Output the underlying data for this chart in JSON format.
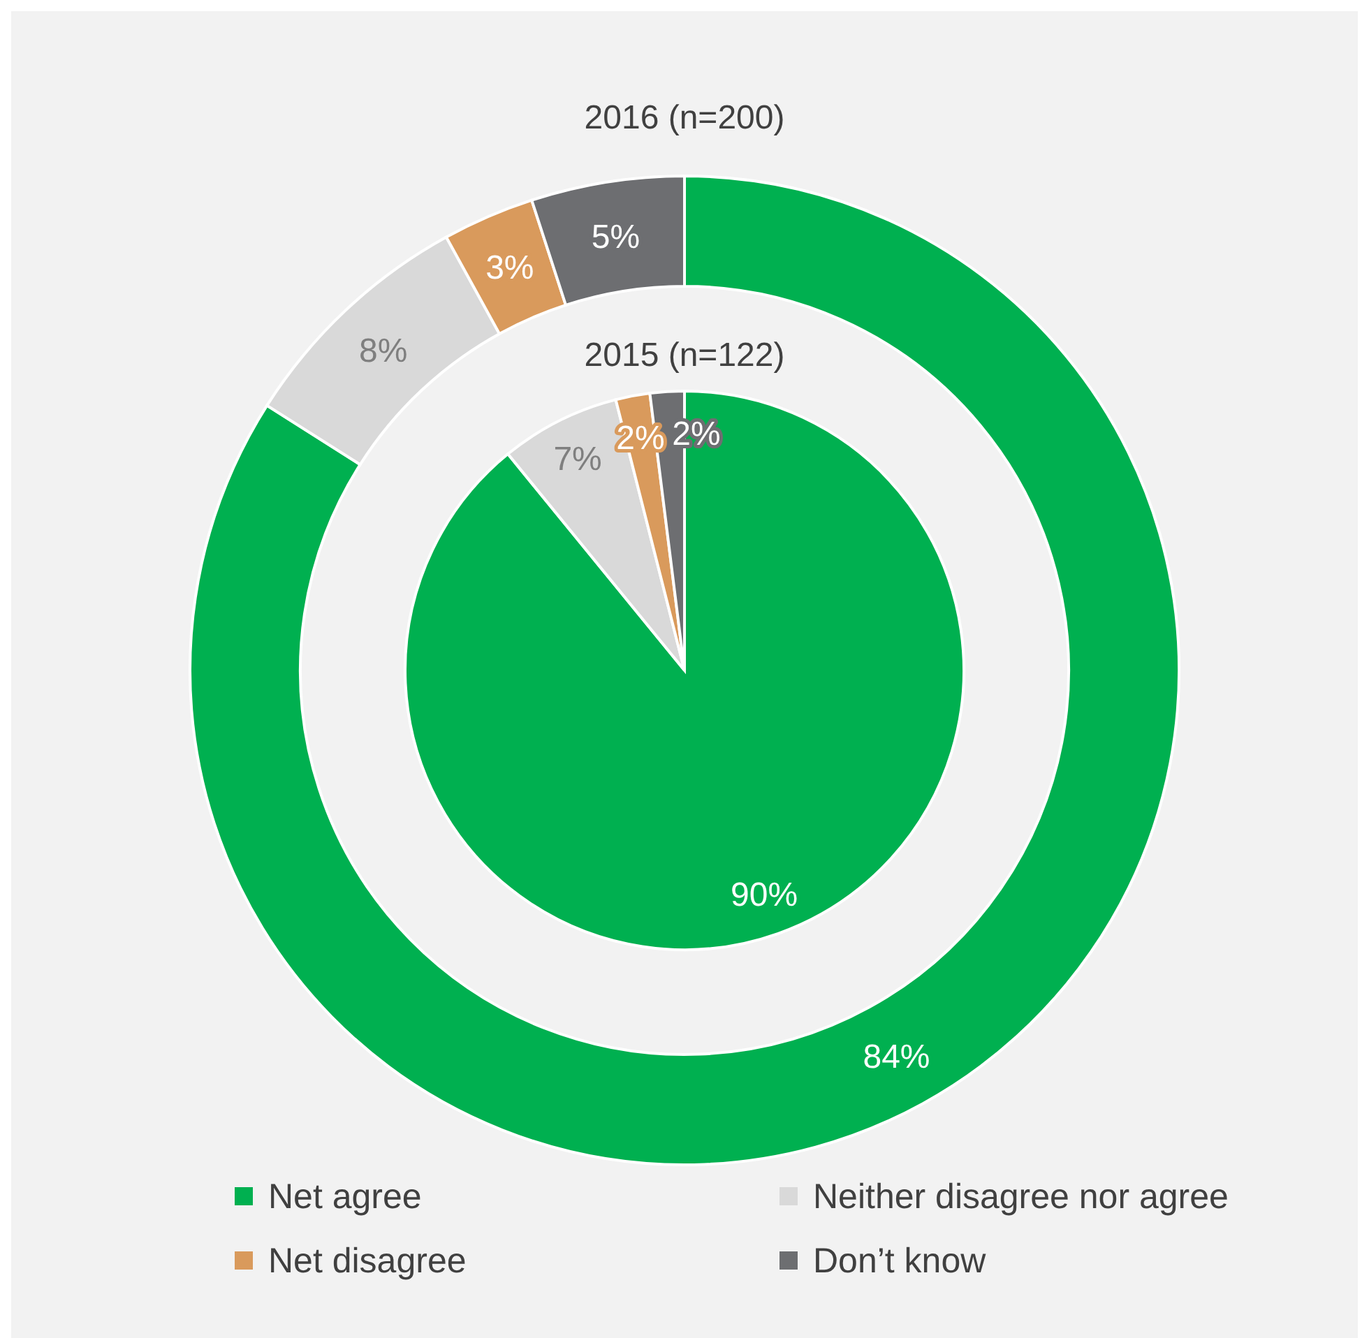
{
  "chart_data": [
    {
      "type": "donut",
      "title": "2016 (n=200)",
      "categories": [
        "Net agree",
        "Neither disagree nor agree",
        "Net disagree",
        "Don’t know"
      ],
      "colors": [
        "#00b050",
        "#d9d9d9",
        "#d99a5c",
        "#6d6e71"
      ],
      "values": [
        84,
        8,
        3,
        5
      ],
      "value_labels": [
        "84%",
        "8%",
        "3%",
        "5%"
      ],
      "legend": "bottom"
    },
    {
      "type": "pie",
      "title": "2015 (n=122)",
      "categories": [
        null,
        null,
        null,
        null
      ],
      "colors": [
        "#00b050",
        "#d9d9d9",
        "#d99a5c",
        "#6d6e71"
      ],
      "values": [
        90,
        7,
        2,
        2
      ],
      "value_labels": [
        "90%",
        "7%",
        "2%",
        "2%"
      ]
    }
  ]
}
